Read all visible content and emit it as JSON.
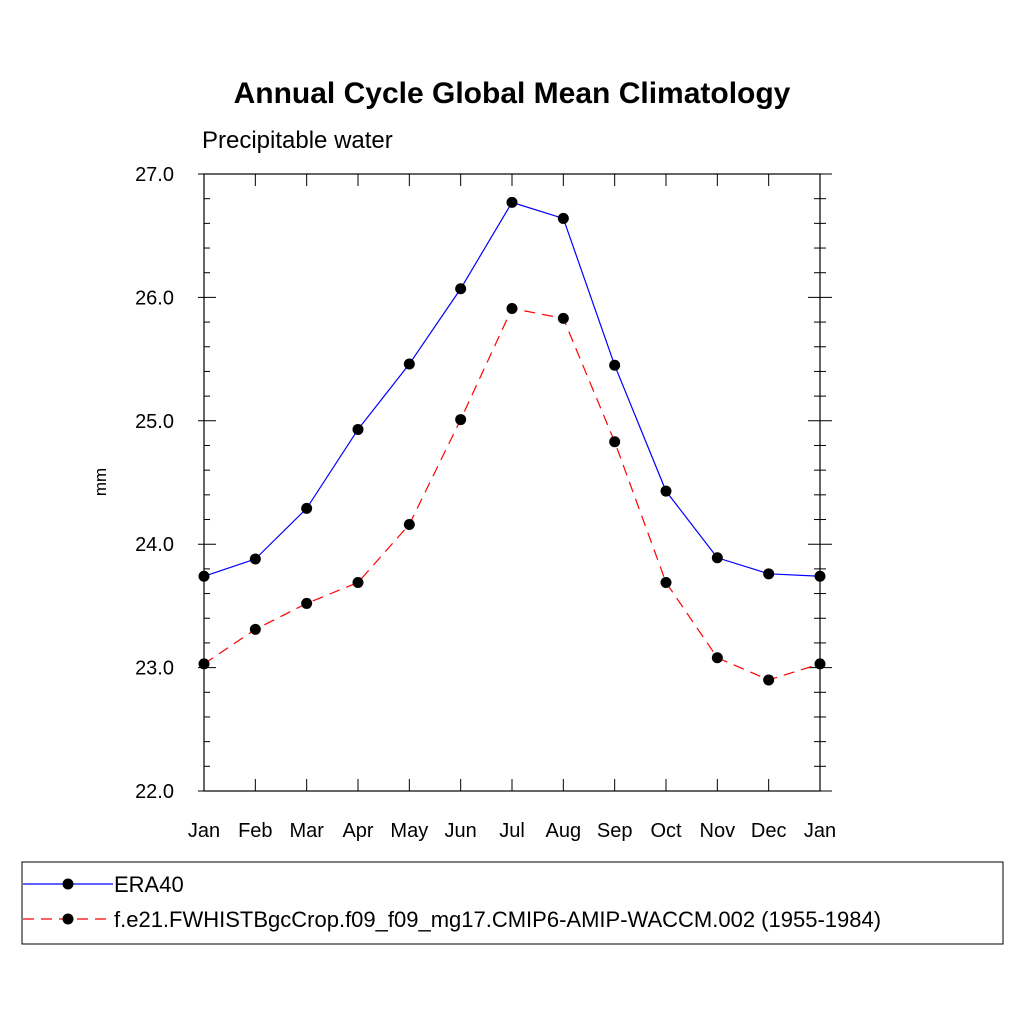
{
  "chart_data": {
    "type": "line",
    "title": "Annual Cycle Global Mean Climatology",
    "subtitle": "Precipitable water",
    "xlabel": "",
    "ylabel": "mm",
    "categories": [
      "Jan",
      "Feb",
      "Mar",
      "Apr",
      "May",
      "Jun",
      "Jul",
      "Aug",
      "Sep",
      "Oct",
      "Nov",
      "Dec",
      "Jan"
    ],
    "ylim": [
      22.0,
      27.0
    ],
    "yticks": [
      "22.0",
      "23.0",
      "24.0",
      "25.0",
      "26.0",
      "27.0"
    ],
    "grid": false,
    "legend_position": "bottom",
    "series": [
      {
        "name": "ERA40",
        "color": "#0000ff",
        "dash": "solid",
        "values": [
          23.74,
          23.88,
          24.29,
          24.93,
          25.46,
          26.07,
          26.77,
          26.64,
          25.45,
          24.43,
          23.89,
          23.76,
          23.74
        ]
      },
      {
        "name": "f.e21.FWHISTBgcCrop.f09_f09_mg17.CMIP6-AMIP-WACCM.002 (1955-1984)",
        "color": "#ff0000",
        "dash": "dashed",
        "values": [
          23.03,
          23.31,
          23.52,
          23.69,
          24.16,
          25.01,
          25.91,
          25.83,
          24.83,
          23.69,
          23.08,
          22.9,
          23.03
        ]
      }
    ]
  }
}
